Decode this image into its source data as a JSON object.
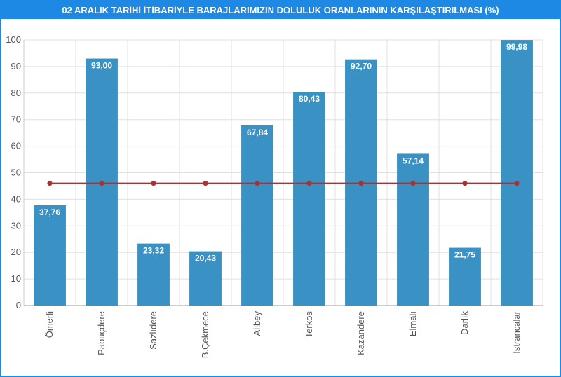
{
  "title": "02 ARALIK TARİHİ İTİBARİYLE BARAJLARIMIZIN DOLULUK ORANLARININ KARŞILAŞTIRILMASI (%)",
  "colors": {
    "frame": "#1e88e5",
    "bar": "#3a91c3",
    "line": "#a83232",
    "grid": "#e0e0e0"
  },
  "chart_data": {
    "type": "bar",
    "title": "02 ARALIK TARİHİ İTİBARİYLE BARAJLARIMIZIN DOLULUK ORANLARININ KARŞILAŞTIRILMASI (%)",
    "categories": [
      "Ömerli",
      "Pabuçdere",
      "Sazlıdere",
      "B.Çekmece",
      "Alibey",
      "Terkos",
      "Kazandere",
      "Elmalı",
      "Darlık",
      "Istrancalar"
    ],
    "series": [
      {
        "type": "bar",
        "values": [
          37.76,
          93.0,
          23.32,
          20.43,
          67.84,
          80.43,
          92.7,
          57.14,
          21.75,
          99.98
        ],
        "labels": [
          "37,76",
          "93,00",
          "23,32",
          "20,43",
          "67,84",
          "80,43",
          "92,70",
          "57,14",
          "21,75",
          "99,98"
        ]
      },
      {
        "type": "line",
        "values": [
          46.0,
          46.0,
          46.0,
          46.0,
          46.0,
          46.0,
          46.0,
          46.0,
          46.0,
          46.0
        ]
      }
    ],
    "ylim": [
      0,
      100
    ],
    "yticks": [
      0,
      10,
      20,
      30,
      40,
      50,
      60,
      70,
      80,
      90,
      100
    ],
    "grid": true,
    "xlabel": "",
    "ylabel": ""
  }
}
